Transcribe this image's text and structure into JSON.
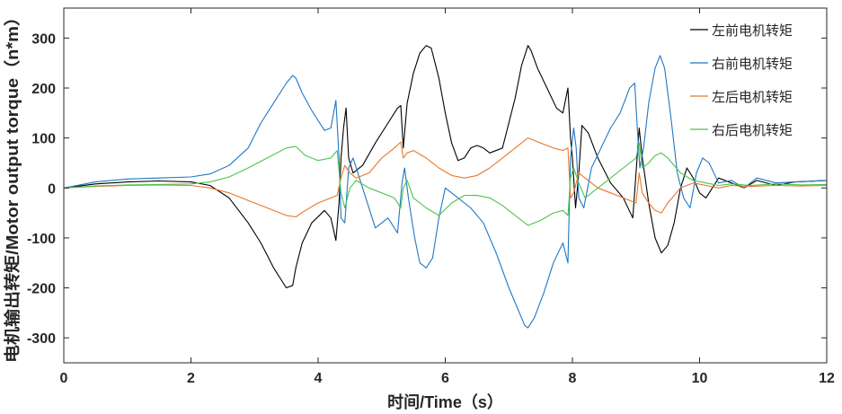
{
  "chart_data": {
    "type": "line",
    "xlabel": "时间/Time（s）",
    "ylabel": "电机输出转矩/Motor output torque（n*m）",
    "xlim": [
      0,
      12
    ],
    "ylim": [
      -350,
      360
    ],
    "xticks": [
      0,
      2,
      4,
      6,
      8,
      10,
      12
    ],
    "yticks": [
      -300,
      -200,
      -100,
      0,
      100,
      200,
      300
    ],
    "grid": false,
    "legend_position": "top-right",
    "series": [
      {
        "name": "左前电机转矩",
        "color": "#000000",
        "x": [
          0,
          0.5,
          1.0,
          1.5,
          2.0,
          2.3,
          2.6,
          2.9,
          3.1,
          3.3,
          3.5,
          3.6,
          3.65,
          3.75,
          3.9,
          4.1,
          4.2,
          4.28,
          4.33,
          4.36,
          4.4,
          4.44,
          4.48,
          4.55,
          4.7,
          4.9,
          5.1,
          5.25,
          5.3,
          5.34,
          5.4,
          5.5,
          5.6,
          5.7,
          5.78,
          5.9,
          6.0,
          6.1,
          6.2,
          6.3,
          6.4,
          6.5,
          6.6,
          6.7,
          6.9,
          7.1,
          7.2,
          7.3,
          7.35,
          7.45,
          7.6,
          7.75,
          7.85,
          7.93,
          7.97,
          8.0,
          8.05,
          8.1,
          8.15,
          8.25,
          8.4,
          8.6,
          8.8,
          8.95,
          9.0,
          9.05,
          9.1,
          9.2,
          9.3,
          9.4,
          9.5,
          9.6,
          9.7,
          9.8,
          9.9,
          10.0,
          10.1,
          10.3,
          10.5,
          10.7,
          10.9,
          11.2,
          11.5,
          12.0
        ],
        "y": [
          0,
          8,
          12,
          14,
          12,
          5,
          -20,
          -70,
          -110,
          -160,
          -200,
          -195,
          -160,
          -110,
          -70,
          -45,
          -60,
          -105,
          -30,
          60,
          120,
          160,
          60,
          30,
          45,
          90,
          130,
          160,
          165,
          80,
          170,
          230,
          270,
          285,
          280,
          220,
          150,
          90,
          55,
          60,
          80,
          85,
          80,
          70,
          80,
          180,
          245,
          285,
          275,
          240,
          200,
          160,
          150,
          200,
          100,
          60,
          -40,
          30,
          125,
          110,
          60,
          10,
          -20,
          -60,
          30,
          120,
          60,
          -30,
          -100,
          -130,
          -115,
          -70,
          0,
          40,
          20,
          -10,
          -20,
          20,
          10,
          0,
          15,
          5,
          12,
          15
        ]
      },
      {
        "name": "右前电机转矩",
        "color": "#1f77c4",
        "x": [
          0,
          0.5,
          1.0,
          1.5,
          2.0,
          2.3,
          2.6,
          2.9,
          3.1,
          3.3,
          3.5,
          3.6,
          3.65,
          3.75,
          3.9,
          4.1,
          4.2,
          4.28,
          4.33,
          4.36,
          4.42,
          4.48,
          4.55,
          4.7,
          4.9,
          5.1,
          5.25,
          5.32,
          5.36,
          5.42,
          5.52,
          5.6,
          5.7,
          5.8,
          5.9,
          6.0,
          6.2,
          6.4,
          6.6,
          6.8,
          7.0,
          7.15,
          7.25,
          7.3,
          7.4,
          7.55,
          7.7,
          7.85,
          7.93,
          7.97,
          8.02,
          8.06,
          8.1,
          8.18,
          8.3,
          8.45,
          8.6,
          8.75,
          8.9,
          8.98,
          9.02,
          9.06,
          9.12,
          9.2,
          9.3,
          9.38,
          9.45,
          9.55,
          9.65,
          9.75,
          9.85,
          9.95,
          10.05,
          10.15,
          10.3,
          10.5,
          10.7,
          10.9,
          11.2,
          11.5,
          12.0
        ],
        "y": [
          0,
          12,
          18,
          20,
          22,
          28,
          45,
          80,
          130,
          170,
          210,
          225,
          220,
          190,
          155,
          115,
          120,
          175,
          60,
          -60,
          -70,
          40,
          60,
          0,
          -80,
          -60,
          -90,
          10,
          40,
          -20,
          -100,
          -150,
          -160,
          -140,
          -60,
          0,
          -20,
          -40,
          -70,
          -130,
          -200,
          -245,
          -275,
          -280,
          -260,
          -210,
          -150,
          -110,
          -150,
          60,
          120,
          80,
          -20,
          -40,
          40,
          80,
          120,
          150,
          200,
          210,
          120,
          40,
          80,
          170,
          240,
          265,
          240,
          140,
          30,
          -20,
          -40,
          30,
          60,
          50,
          10,
          15,
          0,
          20,
          10,
          12,
          15
        ]
      },
      {
        "name": "左后电机转矩",
        "color": "#e8762b",
        "x": [
          0,
          0.5,
          1.0,
          1.5,
          2.0,
          2.3,
          2.6,
          2.9,
          3.2,
          3.5,
          3.65,
          3.8,
          4.0,
          4.2,
          4.3,
          4.36,
          4.42,
          4.5,
          4.6,
          4.8,
          5.0,
          5.2,
          5.3,
          5.34,
          5.4,
          5.5,
          5.7,
          5.9,
          6.1,
          6.3,
          6.5,
          6.7,
          6.9,
          7.1,
          7.3,
          7.5,
          7.7,
          7.85,
          7.93,
          7.97,
          8.02,
          8.1,
          8.2,
          8.4,
          8.6,
          8.8,
          9.0,
          9.05,
          9.1,
          9.2,
          9.3,
          9.4,
          9.5,
          9.7,
          9.9,
          10.1,
          10.3,
          10.5,
          10.8,
          11.2,
          11.6,
          12.0
        ],
        "y": [
          0,
          3,
          5,
          6,
          5,
          0,
          -10,
          -25,
          -40,
          -55,
          -58,
          -45,
          -30,
          -20,
          -15,
          20,
          45,
          30,
          20,
          30,
          60,
          80,
          92,
          60,
          70,
          75,
          60,
          40,
          25,
          20,
          25,
          40,
          60,
          80,
          100,
          90,
          80,
          75,
          80,
          -20,
          -10,
          30,
          20,
          0,
          -10,
          -20,
          -30,
          30,
          -10,
          -30,
          -45,
          -50,
          -30,
          0,
          10,
          5,
          0,
          5,
          3,
          5,
          4,
          5
        ]
      },
      {
        "name": "右后电机转矩",
        "color": "#4cc44c",
        "x": [
          0,
          0.5,
          1.0,
          1.5,
          2.0,
          2.3,
          2.6,
          2.9,
          3.2,
          3.5,
          3.65,
          3.8,
          4.0,
          4.2,
          4.3,
          4.36,
          4.42,
          4.5,
          4.6,
          4.8,
          5.0,
          5.2,
          5.3,
          5.34,
          5.4,
          5.5,
          5.7,
          5.9,
          6.1,
          6.3,
          6.5,
          6.7,
          6.9,
          7.1,
          7.3,
          7.5,
          7.7,
          7.85,
          7.93,
          7.97,
          8.02,
          8.1,
          8.2,
          8.4,
          8.6,
          8.8,
          9.0,
          9.05,
          9.1,
          9.2,
          9.3,
          9.4,
          9.5,
          9.7,
          9.9,
          10.1,
          10.3,
          10.5,
          10.8,
          11.2,
          11.6,
          12.0
        ],
        "y": [
          0,
          4,
          6,
          7,
          8,
          12,
          22,
          40,
          60,
          80,
          83,
          65,
          55,
          60,
          75,
          -10,
          -40,
          0,
          15,
          0,
          -10,
          -20,
          -40,
          0,
          15,
          -20,
          -40,
          -55,
          -30,
          -15,
          -15,
          -20,
          -35,
          -55,
          -75,
          -65,
          -50,
          -45,
          -55,
          20,
          40,
          10,
          -20,
          0,
          20,
          40,
          60,
          90,
          40,
          50,
          65,
          70,
          60,
          30,
          15,
          10,
          5,
          8,
          5,
          8,
          6,
          7
        ]
      }
    ]
  }
}
